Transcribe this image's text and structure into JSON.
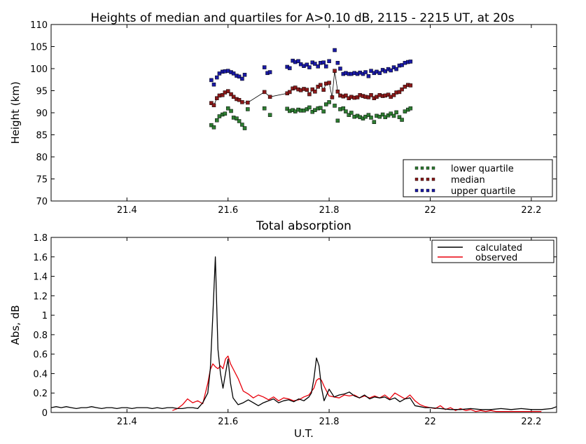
{
  "chart_data": [
    {
      "type": "scatter",
      "title": "Heights of median and quartiles for A>0.10 dB, 2115 - 2215 UT, at 20s",
      "xlabel": "",
      "ylabel": "Height (km)",
      "xlim": [
        21.25,
        22.25
      ],
      "ylim": [
        70,
        110
      ],
      "xticks": [
        21.4,
        21.6,
        21.8,
        22,
        22.2
      ],
      "xtick_labels": [
        "21.4",
        "21.6",
        "21.8",
        "22",
        "22.2"
      ],
      "yticks": [
        70,
        75,
        80,
        85,
        90,
        95,
        100,
        105,
        110
      ],
      "ytick_labels": [
        "70",
        "75",
        "80",
        "85",
        "90",
        "95",
        "100",
        "105",
        "110"
      ],
      "grid": false,
      "legend_position": "lower-right",
      "series": [
        {
          "name": "lower quartile",
          "color": "#2e7d32",
          "x": [
            21.567,
            21.572,
            21.578,
            21.583,
            21.589,
            21.594,
            21.6,
            21.606,
            21.611,
            21.617,
            21.622,
            21.628,
            21.633,
            21.639,
            21.672,
            21.683,
            21.717,
            21.722,
            21.728,
            21.733,
            21.739,
            21.744,
            21.75,
            21.756,
            21.761,
            21.767,
            21.772,
            21.778,
            21.783,
            21.789,
            21.794,
            21.8,
            21.811,
            21.817,
            21.822,
            21.828,
            21.833,
            21.839,
            21.844,
            21.85,
            21.856,
            21.861,
            21.867,
            21.872,
            21.878,
            21.883,
            21.889,
            21.894,
            21.9,
            21.906,
            21.911,
            21.917,
            21.922,
            21.928,
            21.933,
            21.939,
            21.944,
            21.95,
            21.956,
            21.961
          ],
          "y": [
            87.2,
            86.7,
            88.3,
            89.2,
            89.6,
            89.8,
            91.0,
            90.4,
            88.9,
            88.7,
            88.1,
            87.3,
            86.5,
            90.8,
            91.0,
            89.5,
            90.9,
            90.4,
            90.6,
            90.3,
            90.7,
            90.5,
            90.5,
            90.8,
            91.2,
            90.2,
            90.6,
            91.0,
            91.1,
            90.3,
            91.9,
            92.4,
            91.6,
            88.2,
            90.8,
            91.0,
            90.3,
            89.5,
            90.0,
            89.1,
            89.3,
            89.0,
            88.7,
            89.1,
            89.5,
            88.9,
            87.9,
            89.3,
            89.1,
            89.6,
            89.0,
            89.4,
            89.8,
            89.3,
            90.1,
            89.0,
            88.4,
            90.3,
            90.7,
            91.0
          ]
        },
        {
          "name": "median",
          "color": "#8b1a1a",
          "x": [
            21.567,
            21.572,
            21.578,
            21.583,
            21.589,
            21.594,
            21.6,
            21.606,
            21.611,
            21.617,
            21.622,
            21.628,
            21.639,
            21.672,
            21.683,
            21.717,
            21.722,
            21.728,
            21.733,
            21.739,
            21.744,
            21.75,
            21.756,
            21.761,
            21.767,
            21.772,
            21.778,
            21.783,
            21.789,
            21.794,
            21.8,
            21.806,
            21.811,
            21.817,
            21.822,
            21.828,
            21.833,
            21.839,
            21.844,
            21.85,
            21.856,
            21.861,
            21.867,
            21.872,
            21.878,
            21.883,
            21.889,
            21.894,
            21.9,
            21.906,
            21.911,
            21.917,
            21.922,
            21.928,
            21.933,
            21.939,
            21.944,
            21.95,
            21.956,
            21.961
          ],
          "y": [
            92.2,
            91.7,
            93.3,
            93.9,
            94.0,
            94.6,
            94.9,
            94.2,
            93.6,
            93.1,
            92.9,
            92.4,
            92.3,
            94.7,
            93.6,
            94.4,
            94.7,
            95.5,
            95.7,
            95.3,
            95.1,
            95.4,
            95.2,
            94.2,
            95.3,
            94.8,
            95.9,
            96.3,
            95.2,
            96.6,
            96.8,
            93.5,
            99.5,
            94.8,
            93.9,
            93.7,
            93.9,
            93.3,
            93.6,
            93.4,
            93.5,
            94.0,
            93.8,
            93.6,
            93.5,
            94.0,
            93.3,
            93.6,
            94.0,
            93.8,
            93.9,
            94.1,
            93.6,
            94.0,
            94.6,
            94.7,
            95.3,
            95.9,
            96.3,
            96.2
          ]
        },
        {
          "name": "upper quartile",
          "color": "#1a1aa6",
          "x": [
            21.567,
            21.572,
            21.578,
            21.583,
            21.589,
            21.594,
            21.6,
            21.606,
            21.611,
            21.617,
            21.622,
            21.628,
            21.633,
            21.672,
            21.678,
            21.683,
            21.717,
            21.722,
            21.728,
            21.733,
            21.739,
            21.744,
            21.75,
            21.756,
            21.761,
            21.767,
            21.772,
            21.778,
            21.783,
            21.789,
            21.794,
            21.8,
            21.811,
            21.817,
            21.822,
            21.828,
            21.833,
            21.839,
            21.844,
            21.85,
            21.856,
            21.861,
            21.867,
            21.872,
            21.878,
            21.883,
            21.889,
            21.894,
            21.9,
            21.906,
            21.911,
            21.917,
            21.922,
            21.928,
            21.933,
            21.939,
            21.944,
            21.95,
            21.956,
            21.961
          ],
          "y": [
            97.4,
            96.4,
            98.0,
            98.9,
            99.3,
            99.4,
            99.5,
            99.2,
            98.9,
            98.4,
            98.2,
            97.7,
            98.6,
            100.3,
            99.0,
            99.2,
            100.4,
            100.1,
            101.8,
            101.5,
            101.7,
            101.0,
            100.6,
            100.9,
            100.3,
            101.4,
            101.1,
            100.5,
            101.3,
            101.4,
            100.5,
            101.7,
            104.2,
            101.3,
            100.0,
            98.8,
            99.0,
            98.8,
            98.8,
            99.0,
            98.8,
            99.1,
            98.8,
            99.2,
            98.3,
            99.5,
            99.0,
            99.3,
            99.0,
            99.7,
            99.4,
            99.9,
            99.6,
            100.3,
            99.9,
            100.7,
            100.8,
            101.3,
            101.5,
            101.6
          ]
        }
      ]
    },
    {
      "type": "line",
      "title": "Total absorption",
      "xlabel": "U.T.",
      "ylabel": "Abs, dB",
      "xlim": [
        21.25,
        22.25
      ],
      "ylim": [
        0,
        1.8
      ],
      "xticks": [
        21.4,
        21.6,
        21.8,
        22,
        22.2
      ],
      "xtick_labels": [
        "21.4",
        "21.6",
        "21.8",
        "22",
        "22.2"
      ],
      "yticks": [
        0,
        0.2,
        0.4,
        0.6,
        0.8,
        1,
        1.2,
        1.4,
        1.6,
        1.8
      ],
      "ytick_labels": [
        "0",
        "0.2",
        "0.4",
        "0.6",
        "0.8",
        "1",
        "1.2",
        "1.4",
        "1.6",
        "1.8"
      ],
      "grid": false,
      "legend_position": "top-right",
      "series": [
        {
          "name": "calculated",
          "color": "#000000",
          "x": [
            21.25,
            21.26,
            21.27,
            21.28,
            21.29,
            21.3,
            21.31,
            21.32,
            21.33,
            21.34,
            21.35,
            21.36,
            21.37,
            21.38,
            21.39,
            21.4,
            21.41,
            21.42,
            21.43,
            21.44,
            21.45,
            21.46,
            21.47,
            21.48,
            21.49,
            21.5,
            21.51,
            21.52,
            21.53,
            21.54,
            21.55,
            21.56,
            21.565,
            21.57,
            21.575,
            21.58,
            21.585,
            21.59,
            21.595,
            21.6,
            21.605,
            21.61,
            21.62,
            21.63,
            21.64,
            21.65,
            21.66,
            21.67,
            21.68,
            21.69,
            21.7,
            21.71,
            21.72,
            21.73,
            21.74,
            21.75,
            21.76,
            21.765,
            21.77,
            21.775,
            21.78,
            21.785,
            21.79,
            21.795,
            21.8,
            21.81,
            21.82,
            21.83,
            21.84,
            21.85,
            21.86,
            21.87,
            21.88,
            21.89,
            21.9,
            21.91,
            21.92,
            21.93,
            21.94,
            21.95,
            21.96,
            21.97,
            21.98,
            21.99,
            22.0,
            22.02,
            22.04,
            22.06,
            22.08,
            22.1,
            22.12,
            22.14,
            22.16,
            22.18,
            22.2,
            22.22,
            22.24,
            22.25
          ],
          "y": [
            0.05,
            0.06,
            0.05,
            0.06,
            0.05,
            0.04,
            0.05,
            0.05,
            0.06,
            0.05,
            0.04,
            0.05,
            0.05,
            0.04,
            0.05,
            0.05,
            0.04,
            0.05,
            0.05,
            0.05,
            0.04,
            0.05,
            0.04,
            0.05,
            0.05,
            0.04,
            0.04,
            0.05,
            0.05,
            0.04,
            0.1,
            0.2,
            0.45,
            1.0,
            1.6,
            0.65,
            0.4,
            0.25,
            0.4,
            0.55,
            0.3,
            0.15,
            0.08,
            0.1,
            0.13,
            0.1,
            0.07,
            0.1,
            0.12,
            0.14,
            0.1,
            0.12,
            0.13,
            0.11,
            0.14,
            0.12,
            0.16,
            0.2,
            0.35,
            0.56,
            0.48,
            0.25,
            0.12,
            0.18,
            0.24,
            0.16,
            0.18,
            0.19,
            0.21,
            0.17,
            0.15,
            0.18,
            0.14,
            0.16,
            0.15,
            0.16,
            0.13,
            0.15,
            0.11,
            0.14,
            0.15,
            0.07,
            0.06,
            0.05,
            0.05,
            0.04,
            0.03,
            0.03,
            0.04,
            0.03,
            0.03,
            0.04,
            0.03,
            0.04,
            0.03,
            0.03,
            0.04,
            0.06
          ]
        },
        {
          "name": "observed",
          "color": "#e8000b",
          "x": [
            21.49,
            21.5,
            21.51,
            21.52,
            21.53,
            21.54,
            21.55,
            21.56,
            21.565,
            21.57,
            21.575,
            21.58,
            21.585,
            21.59,
            21.595,
            21.6,
            21.605,
            21.61,
            21.62,
            21.63,
            21.64,
            21.65,
            21.66,
            21.67,
            21.68,
            21.69,
            21.7,
            21.71,
            21.72,
            21.73,
            21.74,
            21.75,
            21.76,
            21.77,
            21.775,
            21.78,
            21.785,
            21.79,
            21.8,
            21.81,
            21.82,
            21.83,
            21.84,
            21.85,
            21.86,
            21.87,
            21.88,
            21.89,
            21.9,
            21.91,
            21.92,
            21.93,
            21.94,
            21.95,
            21.96,
            21.97,
            21.98,
            21.99,
            22.0,
            22.01,
            22.02,
            22.03,
            22.04,
            22.05,
            22.06,
            22.07,
            22.08,
            22.09,
            22.1,
            22.11,
            22.12,
            22.13,
            22.14,
            22.15,
            22.16,
            22.17,
            22.18,
            22.19,
            22.2,
            22.21,
            22.22
          ],
          "y": [
            0.02,
            0.04,
            0.08,
            0.14,
            0.1,
            0.12,
            0.09,
            0.3,
            0.44,
            0.5,
            0.47,
            0.45,
            0.48,
            0.45,
            0.55,
            0.58,
            0.5,
            0.45,
            0.35,
            0.22,
            0.19,
            0.15,
            0.18,
            0.16,
            0.13,
            0.16,
            0.12,
            0.15,
            0.14,
            0.12,
            0.13,
            0.16,
            0.18,
            0.25,
            0.33,
            0.35,
            0.33,
            0.27,
            0.17,
            0.16,
            0.15,
            0.18,
            0.17,
            0.18,
            0.15,
            0.17,
            0.15,
            0.17,
            0.15,
            0.18,
            0.14,
            0.2,
            0.17,
            0.14,
            0.18,
            0.12,
            0.08,
            0.06,
            0.05,
            0.04,
            0.07,
            0.03,
            0.05,
            0.02,
            0.04,
            0.02,
            0.03,
            0.01,
            0.02,
            0.01,
            0.02,
            0.01,
            0.01,
            0.01,
            0.01,
            0.01,
            0.01,
            0.01,
            0.01,
            0.01,
            0.01
          ]
        }
      ]
    }
  ]
}
